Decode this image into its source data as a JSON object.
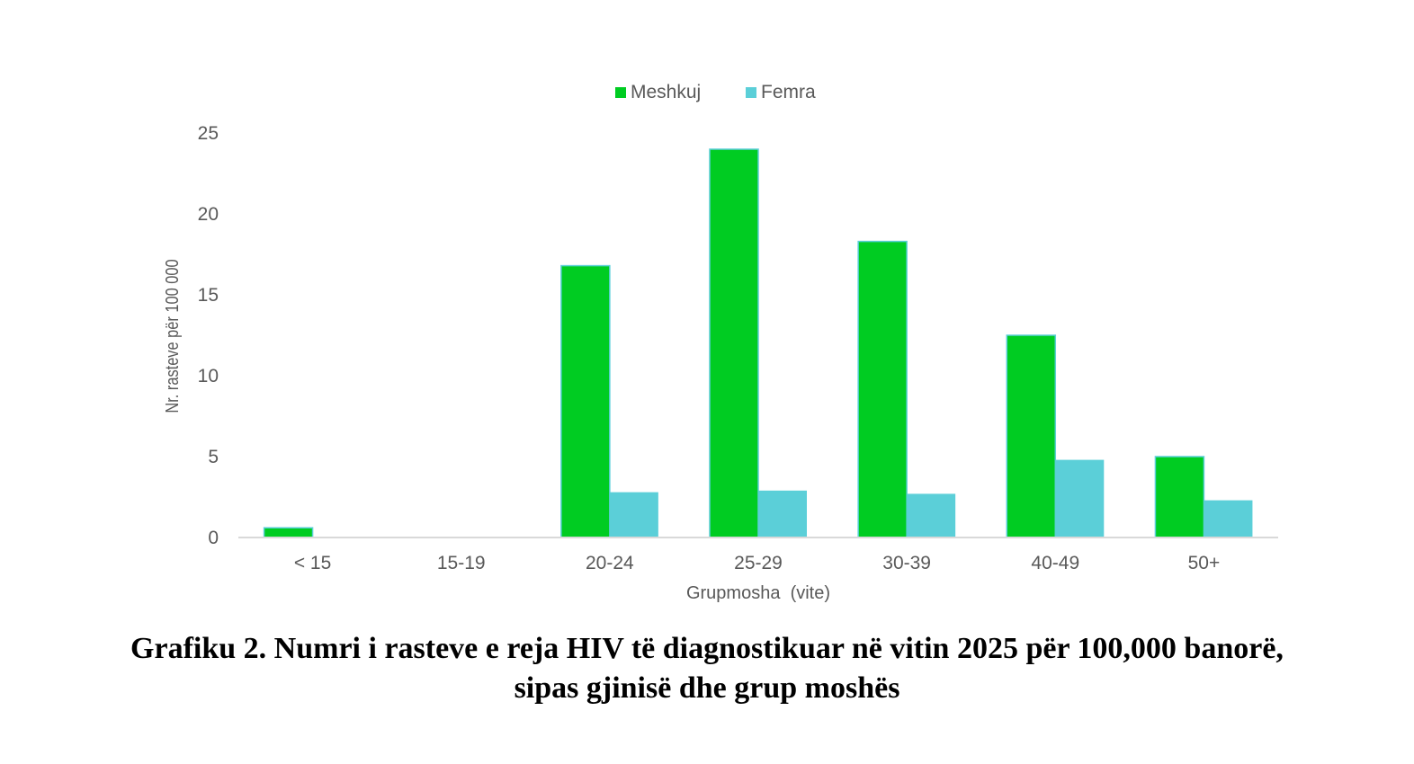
{
  "caption": {
    "line1": "Grafiku 2. Numri i rasteve e reja HIV të diagnostikuar në vitin 2025 për 100,000 banorë,",
    "line2": "sipas gjinisë dhe grup moshës"
  },
  "chart_data": {
    "type": "bar",
    "xlabel": "Grupmosha  (vite)",
    "ylabel": "Nr. rasteve për 100 000",
    "ylim": [
      0,
      25
    ],
    "yticks": [
      0,
      5,
      10,
      15,
      20,
      25
    ],
    "grid": false,
    "legend_position": "top-center",
    "categories": [
      "< 15",
      "15-19",
      "20-24",
      "25-29",
      "30-39",
      "40-49",
      "50+"
    ],
    "series": [
      {
        "name": "Meshkuj",
        "color": "#00cc22",
        "values": [
          0.6,
          0,
          16.8,
          24.0,
          18.3,
          12.5,
          5.0
        ]
      },
      {
        "name": "Femra",
        "color": "#5bcfd8",
        "values": [
          0,
          0,
          2.8,
          2.9,
          2.7,
          4.8,
          2.3
        ]
      }
    ]
  }
}
